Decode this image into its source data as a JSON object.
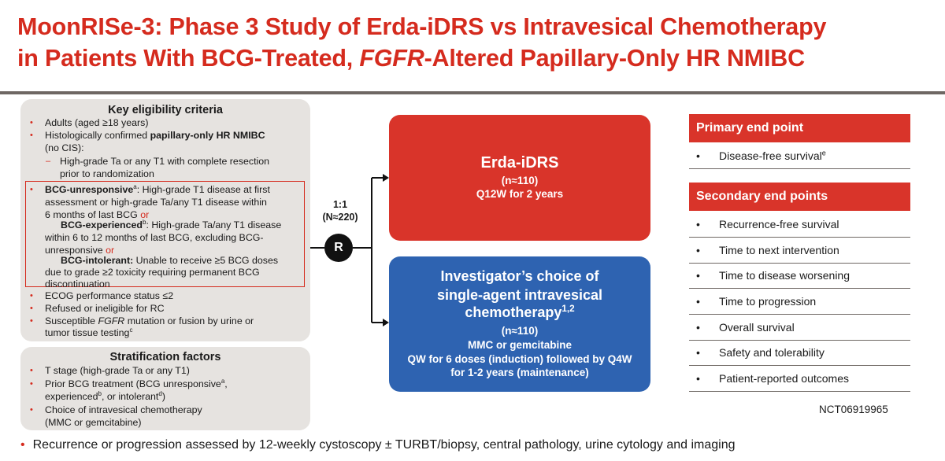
{
  "title": {
    "line1": "MoonRISe-3: Phase 3 Study of Erda-iDRS vs Intravesical Chemotherapy",
    "line2_pre": "in Patients With BCG-Treated, ",
    "line2_italic": "FGFR",
    "line2_post": "-Altered Papillary-Only HR NMIBC"
  },
  "eligibility": {
    "heading": "Key eligibility criteria",
    "adults": "Adults (aged ≥18 years)",
    "histo_pre": "Histologically confirmed ",
    "histo_bold": "papillary-only HR NMIBC",
    "no_cis": "(no CIS):",
    "dash": "–",
    "sub1": "High-grade Ta or any T1 with complete resection",
    "sub2": "prior to randomization",
    "unresp_label": "BCG-unresponsive",
    "unresp_sup": "a",
    "unresp_1": ": High-grade T1 disease at first",
    "unresp_2": "assessment or high-grade Ta/any T1 disease within",
    "unresp_3": "6 months of last BCG ",
    "or": "or",
    "exp_label": "BCG-experienced",
    "exp_sup": "b",
    "exp_1": ": High-grade Ta/any T1 disease",
    "exp_2": "within 6 to 12 months of last BCG, excluding BCG-",
    "exp_3": "unresponsive ",
    "intol_label": "BCG-intolerant:",
    "intol_1": " Unable to receive ≥5 BCG doses",
    "intol_2": "due to grade ≥2 toxicity requiring permanent BCG",
    "intol_3": "discontinuation",
    "ecog": "ECOG performance status ≤2",
    "rc": "Refused or ineligible for RC",
    "susc_pre": "Susceptible ",
    "susc_italic": "FGFR",
    "susc_post": " mutation or fusion by urine or",
    "susc_2": "tumor tissue testing",
    "susc_sup": "c"
  },
  "stratification": {
    "heading": "Stratification factors",
    "t_stage": "T stage (high-grade Ta or any T1)",
    "prior_1": "Prior BCG treatment (BCG unresponsive",
    "prior_sup_a": "a",
    "prior_1b": ",",
    "prior_2": "experienced",
    "prior_sup_b": "b",
    "prior_2b": ", or intolerant",
    "prior_sup_d": "d",
    "prior_2c": ")",
    "choice_1": "Choice of intravesical chemotherapy",
    "choice_2": "(MMC or gemcitabine)"
  },
  "randomization": {
    "ratio": "1:1",
    "n": "(N≈220)",
    "symbol": "R"
  },
  "arm_erda": {
    "name": "Erda-iDRS",
    "n": "(n≈110)",
    "schedule": "Q12W for 2 years"
  },
  "arm_chemo": {
    "name_1": "Investigator’s choice of",
    "name_2": "single-agent intravesical",
    "name_3": "chemotherapy",
    "name_sup": "1,2",
    "n": "(n≈110)",
    "drugs": "MMC or gemcitabine",
    "schedule_1": "QW for 6 doses (induction) followed by Q4W",
    "schedule_2": "for 1-2 years (maintenance)"
  },
  "primary": {
    "heading": "Primary end point",
    "item": "Disease-free survival",
    "item_sup": "e"
  },
  "secondary": {
    "heading": "Secondary end points",
    "items": [
      "Recurrence-free survival",
      "Time to next intervention",
      "Time to disease worsening",
      "Time to progression",
      "Overall survival",
      "Safety and tolerability",
      "Patient-reported outcomes"
    ]
  },
  "bullet": "•",
  "nct": "NCT06919965",
  "footer": "Recurrence or progression assessed by 12-weekly cystoscopy ± TURBT/biopsy, central pathology, urine cytology and imaging",
  "colors": {
    "accent_red": "#d52b1e",
    "arm_red": "#d9342a",
    "arm_blue": "#2e63b1",
    "panel_gray": "#e6e3e0",
    "rule": "#6e6763"
  }
}
